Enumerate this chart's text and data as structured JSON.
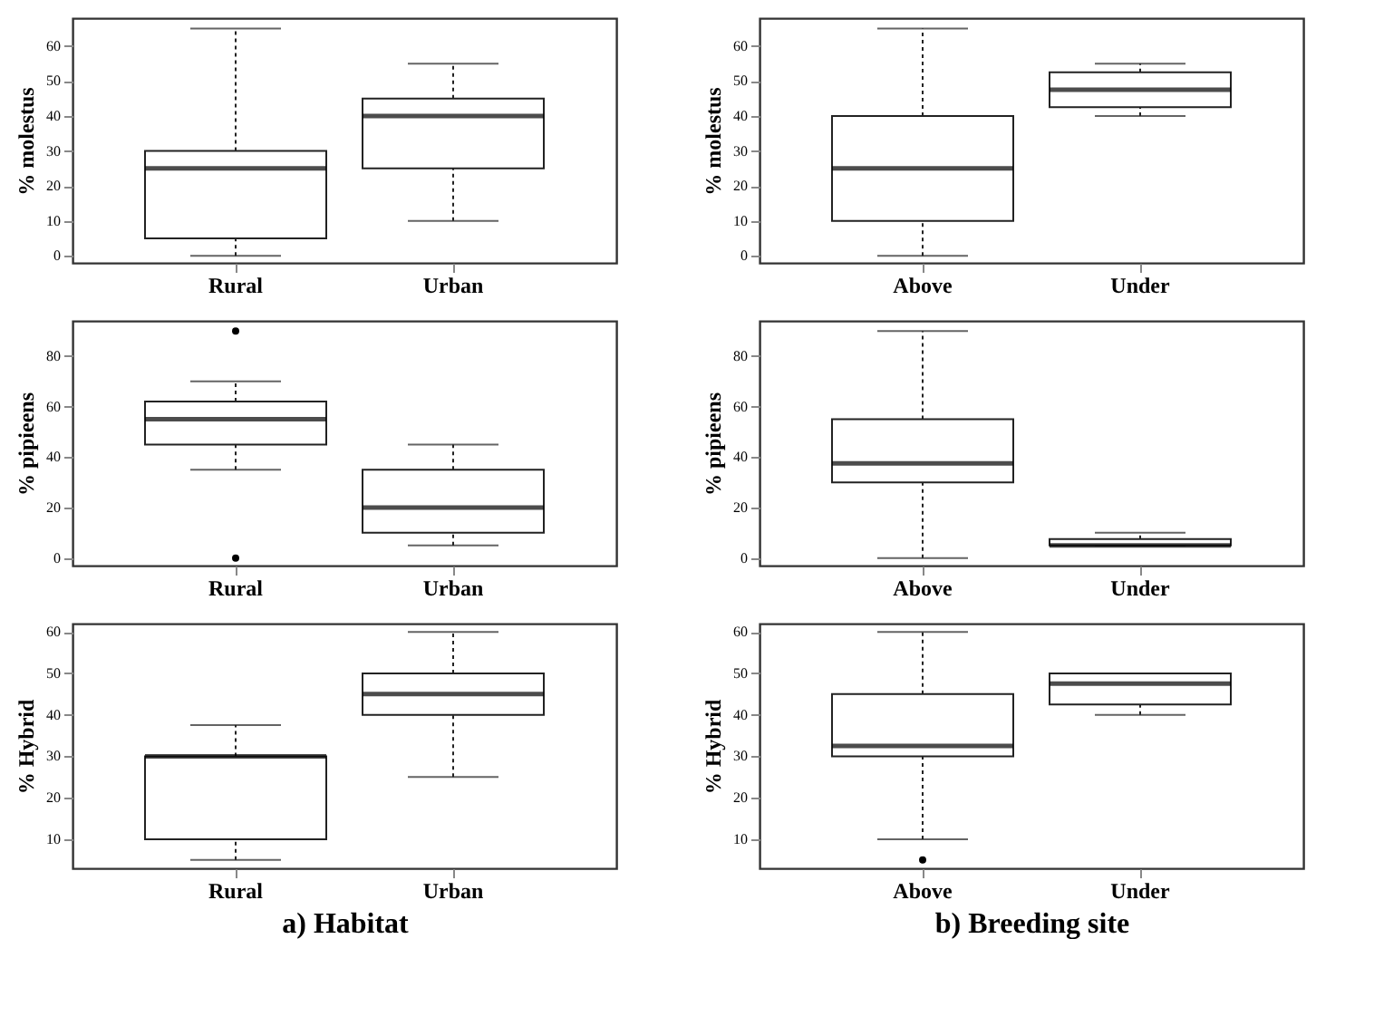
{
  "chart_data": [
    {
      "type": "box",
      "categories": [
        "Rural",
        "Urban"
      ],
      "ylabel": "% molestus",
      "ylim": [
        -2,
        68
      ],
      "yticks": [
        0,
        10,
        20,
        30,
        40,
        50,
        60
      ],
      "grid": false,
      "boxes": [
        {
          "low": 0,
          "q1": 5,
          "median": 25,
          "q3": 30,
          "high": 65
        },
        {
          "low": 10,
          "q1": 25,
          "median": 40,
          "q3": 45,
          "high": 55
        }
      ]
    },
    {
      "type": "box",
      "categories": [
        "Above",
        "Under"
      ],
      "ylabel": "% molestus",
      "ylim": [
        -2,
        68
      ],
      "yticks": [
        0,
        10,
        20,
        30,
        40,
        50,
        60
      ],
      "grid": false,
      "boxes": [
        {
          "low": 0,
          "q1": 10,
          "median": 25,
          "q3": 40,
          "high": 65
        },
        {
          "low": 40,
          "q1": 42.5,
          "median": 47.5,
          "q3": 52.5,
          "high": 55
        }
      ]
    },
    {
      "type": "box",
      "categories": [
        "Rural",
        "Urban"
      ],
      "ylabel": "% pipieens",
      "ylim": [
        -3,
        94
      ],
      "yticks": [
        0,
        20,
        40,
        60,
        80
      ],
      "grid": false,
      "boxes": [
        {
          "low": 35,
          "q1": 45,
          "median": 55,
          "q3": 62,
          "high": 70,
          "outliers": [
            90,
            0
          ]
        },
        {
          "low": 5,
          "q1": 10,
          "median": 20,
          "q3": 35,
          "high": 45
        }
      ]
    },
    {
      "type": "box",
      "categories": [
        "Above",
        "Under"
      ],
      "ylabel": "% pipieens",
      "ylim": [
        -3,
        94
      ],
      "yticks": [
        0,
        20,
        40,
        60,
        80
      ],
      "grid": false,
      "boxes": [
        {
          "low": 0,
          "q1": 30,
          "median": 37.5,
          "q3": 55,
          "high": 90
        },
        {
          "low": 5,
          "q1": 5,
          "median": 5,
          "q3": 7.5,
          "high": 10
        }
      ]
    },
    {
      "type": "box",
      "categories": [
        "Rural",
        "Urban"
      ],
      "ylabel": "% Hybrid",
      "xlabel": "a) Habitat",
      "ylim": [
        3,
        62
      ],
      "yticks": [
        10,
        20,
        30,
        40,
        50,
        60
      ],
      "grid": false,
      "boxes": [
        {
          "low": 5,
          "q1": 10,
          "median": 30,
          "q3": 30,
          "high": 37.5
        },
        {
          "low": 25,
          "q1": 40,
          "median": 45,
          "q3": 50,
          "high": 60
        }
      ]
    },
    {
      "type": "box",
      "categories": [
        "Above",
        "Under"
      ],
      "ylabel": "% Hybrid",
      "xlabel": "b) Breeding site",
      "ylim": [
        3,
        62
      ],
      "yticks": [
        10,
        20,
        30,
        40,
        50,
        60
      ],
      "grid": false,
      "boxes": [
        {
          "low": 10,
          "q1": 30,
          "median": 32.5,
          "q3": 45,
          "high": 60,
          "outliers": [
            5
          ]
        },
        {
          "low": 40,
          "q1": 42.5,
          "median": 47.5,
          "q3": 50,
          "high": 50
        }
      ]
    }
  ]
}
